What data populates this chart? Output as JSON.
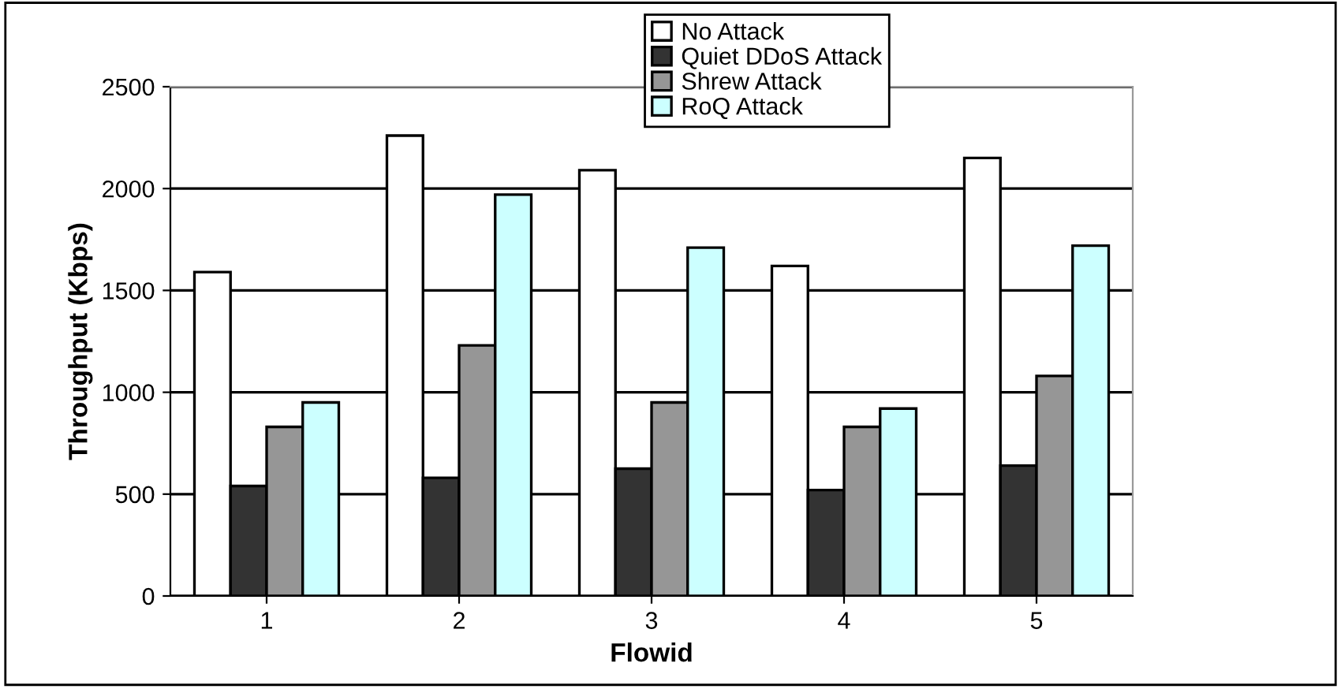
{
  "chart_data": {
    "type": "bar",
    "xlabel": "Flowid",
    "ylabel": "Throughput (Kbps)",
    "categories": [
      "1",
      "2",
      "3",
      "4",
      "5"
    ],
    "series": [
      {
        "name": "No Attack",
        "color": "#ffffff",
        "values": [
          1590,
          2260,
          2090,
          1620,
          2150
        ]
      },
      {
        "name": "Quiet DDoS Attack",
        "color": "#333333",
        "values": [
          540,
          580,
          625,
          520,
          640
        ]
      },
      {
        "name": "Shrew Attack",
        "color": "#969696",
        "values": [
          830,
          1230,
          950,
          830,
          1080
        ]
      },
      {
        "name": "RoQ Attack",
        "color": "#ccffff",
        "values": [
          950,
          1970,
          1710,
          920,
          1720
        ]
      }
    ],
    "ylim": [
      0,
      2500
    ],
    "yticks": [
      0,
      500,
      1000,
      1500,
      2000,
      2500
    ],
    "grid": "y",
    "legend": "top"
  }
}
